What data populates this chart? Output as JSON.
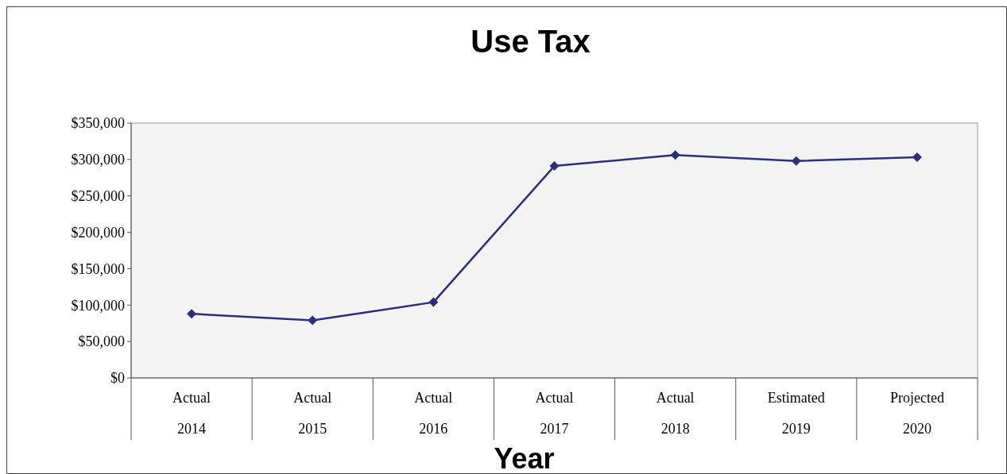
{
  "chart_data": {
    "type": "line",
    "title": "Use Tax",
    "xlabel": "Year",
    "categories": [
      "Actual\n2014",
      "Actual\n2015",
      "Actual\n2016",
      "Actual\n2017",
      "Actual\n2018",
      "Estimated\n2019",
      "Projected\n2020"
    ],
    "series": [
      {
        "color": "#2b2f7a",
        "values": [
          88000,
          79000,
          104000,
          291000,
          306000,
          298000,
          303000
        ]
      }
    ],
    "ylim": [
      0,
      350000
    ],
    "yticks": [
      {
        "value": 0,
        "label": "$0"
      },
      {
        "value": 50000,
        "label": "$50,000"
      },
      {
        "value": 100000,
        "label": "$100,000"
      },
      {
        "value": 150000,
        "label": "$150,000"
      },
      {
        "value": 200000,
        "label": "$200,000"
      },
      {
        "value": 250000,
        "label": "$250,000"
      },
      {
        "value": 300000,
        "label": "$300,000"
      },
      {
        "value": 350000,
        "label": "$350,000"
      }
    ],
    "grid": false,
    "marker": "diamond",
    "line_style": "solid"
  }
}
